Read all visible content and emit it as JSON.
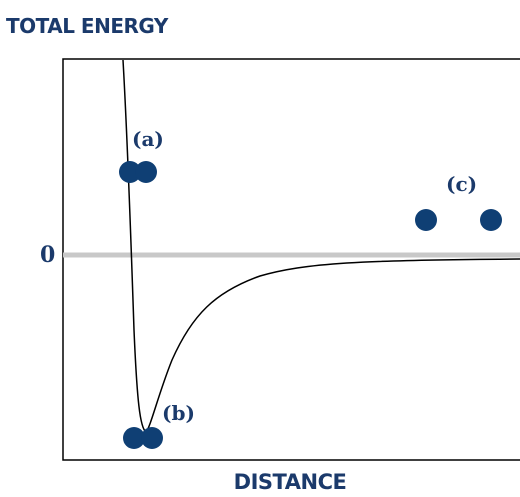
{
  "y_axis_label": "TOTAL ENERGY",
  "x_axis_label": "DISTANCE",
  "zero_label": "0",
  "labels": {
    "a": "(a)",
    "b": "(b)",
    "c": "(c)"
  },
  "colors": {
    "label": "#1b3a6b",
    "atom": "#0f3f74",
    "zero_line": "#c8c8c8",
    "curve": "#000000"
  }
}
